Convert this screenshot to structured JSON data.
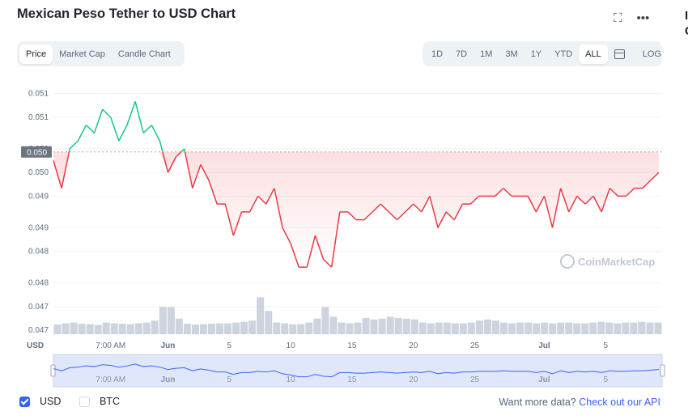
{
  "header": {
    "title": "Mexican Peso Tether to USD Chart",
    "edge_text": "I\nC"
  },
  "icons": {
    "fullscreen": "fullscreen-icon",
    "more": "more-icon",
    "calendar": "calendar-icon",
    "watermark": "coinmarketcap-logo-icon"
  },
  "tabs": [
    {
      "label": "Price",
      "active": true
    },
    {
      "label": "Market Cap",
      "active": false
    },
    {
      "label": "Candle Chart",
      "active": false
    }
  ],
  "ranges": [
    {
      "label": "1D",
      "active": false
    },
    {
      "label": "7D",
      "active": false
    },
    {
      "label": "1M",
      "active": false
    },
    {
      "label": "3M",
      "active": false
    },
    {
      "label": "1Y",
      "active": false
    },
    {
      "label": "YTD",
      "active": false
    },
    {
      "label": "ALL",
      "active": true
    }
  ],
  "log_label": "LOG",
  "watermark": "CoinMarketCap",
  "legend": {
    "usd": "USD",
    "btc": "BTC"
  },
  "footer": {
    "prefix": "Want more data?",
    "link": "Check out our API"
  },
  "colors": {
    "up": "#16c784",
    "down": "#ea3943",
    "accent": "#3861fb",
    "volume": "#c2c9d6",
    "navigator_line": "#3861fb",
    "navigator_bg": "#e1e7fb"
  },
  "chart_data": {
    "type": "line",
    "currency_label": "USD",
    "ylabels": [
      "0.051",
      "0.051",
      "0.050",
      "0.050",
      "0.049",
      "0.049",
      "0.048",
      "0.048",
      "0.047",
      "0.047"
    ],
    "yticks": [
      0.0509,
      0.0506,
      0.0502,
      0.0499,
      0.0496,
      0.0492,
      0.0489,
      0.0485,
      0.0482,
      0.0479
    ],
    "ylim": [
      0.04785,
      0.05106
    ],
    "baseline": {
      "label": "0.050",
      "value": 0.05016
    },
    "xlabels": [
      {
        "label": "7:00 AM",
        "t": 14
      },
      {
        "label": "Jun",
        "t": 28
      },
      {
        "label": "5",
        "t": 43
      },
      {
        "label": "10",
        "t": 58
      },
      {
        "label": "15",
        "t": 73
      },
      {
        "label": "20",
        "t": 88
      },
      {
        "label": "25",
        "t": 103
      },
      {
        "label": "Jul",
        "t": 120
      },
      {
        "label": "5",
        "t": 135
      }
    ],
    "xlim": [
      0,
      148.8
    ],
    "x": [
      0,
      2,
      4,
      6,
      8,
      10,
      12,
      14,
      16,
      18,
      20,
      22,
      24,
      26,
      28,
      30,
      32,
      34,
      36,
      38,
      40,
      42,
      44,
      46,
      48,
      50,
      52,
      54,
      56,
      58,
      60,
      62,
      64,
      66,
      68,
      70,
      72,
      74,
      76,
      78,
      80,
      82,
      84,
      86,
      88,
      90,
      92,
      94,
      96,
      98,
      100,
      102,
      104,
      106,
      108,
      110,
      112,
      114,
      116,
      118,
      120,
      122,
      124,
      126,
      128,
      130,
      132,
      134,
      136,
      138,
      140,
      142,
      144,
      146,
      148
    ],
    "y": [
      0.05005,
      0.0497,
      0.0502,
      0.0503,
      0.0505,
      0.0504,
      0.0507,
      0.0506,
      0.0503,
      0.0505,
      0.0508,
      0.0504,
      0.0505,
      0.0503,
      0.0499,
      0.0501,
      0.0502,
      0.0497,
      0.05,
      0.0498,
      0.0495,
      0.0495,
      0.0491,
      0.0494,
      0.0494,
      0.0496,
      0.0495,
      0.0497,
      0.0492,
      0.049,
      0.0487,
      0.0487,
      0.0491,
      0.0488,
      0.0487,
      0.0494,
      0.0494,
      0.0493,
      0.0493,
      0.0494,
      0.0495,
      0.0494,
      0.0493,
      0.0494,
      0.0495,
      0.0494,
      0.0496,
      0.0492,
      0.0494,
      0.0493,
      0.0495,
      0.0495,
      0.0496,
      0.0496,
      0.0496,
      0.0497,
      0.0496,
      0.0496,
      0.0496,
      0.0494,
      0.0496,
      0.0492,
      0.0497,
      0.0494,
      0.0496,
      0.0495,
      0.0496,
      0.0494,
      0.0497,
      0.0496,
      0.0496,
      0.0497,
      0.0497,
      0.0498,
      0.0499
    ],
    "volume": [
      0.25,
      0.28,
      0.3,
      0.27,
      0.26,
      0.24,
      0.3,
      0.28,
      0.27,
      0.26,
      0.28,
      0.3,
      0.35,
      0.7,
      0.7,
      0.4,
      0.27,
      0.25,
      0.26,
      0.27,
      0.28,
      0.28,
      0.3,
      0.32,
      0.35,
      0.95,
      0.6,
      0.3,
      0.28,
      0.26,
      0.26,
      0.3,
      0.4,
      0.7,
      0.45,
      0.3,
      0.28,
      0.3,
      0.42,
      0.38,
      0.4,
      0.45,
      0.42,
      0.4,
      0.38,
      0.3,
      0.28,
      0.3,
      0.3,
      0.28,
      0.28,
      0.3,
      0.35,
      0.38,
      0.35,
      0.3,
      0.28,
      0.3,
      0.3,
      0.28,
      0.3,
      0.28,
      0.3,
      0.3,
      0.28,
      0.28,
      0.3,
      0.32,
      0.3,
      0.28,
      0.3,
      0.3,
      0.32,
      0.3,
      0.3
    ],
    "grid": true
  }
}
